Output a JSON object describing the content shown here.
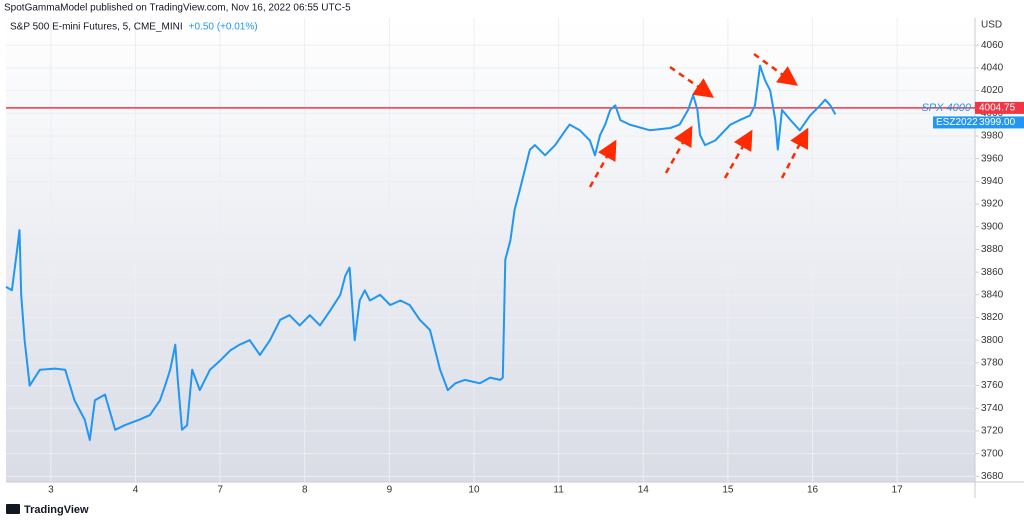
{
  "chart_data": {
    "type": "line",
    "header": "SpotGammaModel published on TradingView.com, Nov 16, 2022 06:55 UTC-5",
    "title": "S&P 500 E-mini Futures, 5, CME_MINI",
    "change": "+0.50 (+0.01%)",
    "currency": "USD",
    "footer": "TradingView",
    "x": [
      -0.53,
      -0.46,
      -0.4,
      -0.37,
      -0.35,
      -0.31,
      -0.25,
      -0.13,
      0.05,
      0.17,
      0.28,
      0.4,
      0.46,
      0.52,
      0.64,
      0.76,
      0.87,
      1.05,
      1.17,
      1.29,
      1.35,
      1.41,
      1.47,
      1.5,
      1.55,
      1.61,
      1.67,
      1.76,
      1.88,
      2.0,
      2.12,
      2.23,
      2.35,
      2.47,
      2.59,
      2.71,
      2.82,
      2.94,
      3.06,
      3.18,
      3.3,
      3.42,
      3.48,
      3.53,
      3.59,
      3.65,
      3.71,
      3.77,
      3.89,
      4.01,
      4.13,
      4.24,
      4.36,
      4.48,
      4.6,
      4.69,
      4.78,
      4.89,
      5.07,
      5.19,
      5.31,
      5.34,
      5.37,
      5.43,
      5.48,
      5.54,
      5.6,
      5.66,
      5.72,
      5.84,
      5.96,
      6.08,
      6.13,
      6.25,
      6.37,
      6.43,
      6.49,
      6.55,
      6.61,
      6.67,
      6.73,
      6.84,
      7.08,
      7.32,
      7.43,
      7.53,
      7.59,
      7.64,
      7.67,
      7.73,
      7.85,
      8.03,
      8.14,
      8.26,
      8.32,
      8.38,
      8.44,
      8.5,
      8.56,
      8.59,
      8.64,
      8.74,
      8.85,
      8.97,
      9.09,
      9.15,
      9.21,
      9.27
    ],
    "series": [
      {
        "name": "ESZ2022",
        "color": "#2196f3",
        "values": [
          3847,
          3844,
          3879,
          3897,
          3840,
          3800,
          3760,
          3774,
          3775,
          3774,
          3747,
          3730,
          3712,
          3747,
          3752,
          3721,
          3725,
          3730,
          3734,
          3747,
          3760,
          3774,
          3796,
          3765,
          3721,
          3725,
          3774,
          3756,
          3774,
          3782,
          3791,
          3796,
          3800,
          3787,
          3800,
          3818,
          3822,
          3813,
          3822,
          3813,
          3826,
          3840,
          3857,
          3864,
          3800,
          3835,
          3844,
          3835,
          3840,
          3831,
          3835,
          3831,
          3818,
          3809,
          3774,
          3756,
          3762,
          3765,
          3762,
          3767,
          3765,
          3767,
          3871,
          3888,
          3915,
          3932,
          3950,
          3968,
          3972,
          3963,
          3972,
          3985,
          3990,
          3985,
          3976,
          3963,
          3981,
          3990,
          4003,
          4007,
          3994,
          3990,
          3985,
          3987,
          3990,
          4003,
          4016,
          4003,
          3981,
          3972,
          3976,
          3990,
          3994,
          3998,
          4007,
          4042,
          4029,
          4020,
          3994,
          3968,
          4003,
          3994,
          3985,
          3998,
          4007,
          4012,
          4007,
          3999
        ],
        "value_labels": [
          null,
          null,
          null,
          null,
          null,
          null,
          null,
          null,
          null,
          null,
          null,
          null,
          null,
          null,
          null,
          null,
          null,
          null,
          null,
          null,
          null,
          null,
          null,
          null,
          null,
          null,
          null,
          null,
          null,
          null,
          null,
          null,
          null,
          null,
          null,
          null,
          null,
          null,
          null,
          null,
          null,
          null,
          null,
          null,
          null,
          null,
          null,
          null,
          null,
          null,
          null,
          null,
          null,
          null,
          null,
          null,
          null,
          null,
          null,
          null,
          null,
          null,
          null,
          null,
          null,
          null,
          null,
          null,
          null,
          null,
          null,
          null,
          null,
          null,
          null,
          null,
          null,
          null,
          null,
          null,
          null,
          null,
          null,
          null,
          null,
          null,
          null,
          null,
          null,
          null,
          null,
          null,
          null,
          null,
          null,
          null,
          null,
          null,
          null,
          null,
          null,
          null,
          null,
          null,
          null,
          null,
          null,
          "3999.00"
        ]
      }
    ],
    "hline": {
      "name": "SPX 4000",
      "value": 4004.75,
      "color": "#f23645"
    },
    "xlim": [
      -0.53,
      10.92
    ],
    "ylim": [
      3675,
      4084
    ],
    "xticks": [
      {
        "value": 0,
        "label": "3"
      },
      {
        "value": 1,
        "label": "4"
      },
      {
        "value": 2,
        "label": "7"
      },
      {
        "value": 3,
        "label": "8"
      },
      {
        "value": 4,
        "label": "9"
      },
      {
        "value": 5,
        "label": "10"
      },
      {
        "value": 6,
        "label": "11"
      },
      {
        "value": 7,
        "label": "14"
      },
      {
        "value": 8,
        "label": "15"
      },
      {
        "value": 9,
        "label": "16"
      },
      {
        "value": 10,
        "label": "17"
      }
    ],
    "yticks": [
      3680,
      3700,
      3720,
      3740,
      3760,
      3780,
      3800,
      3820,
      3840,
      3860,
      3880,
      3900,
      3920,
      3940,
      3960,
      3980,
      4000,
      4020,
      4040,
      4060
    ],
    "grid": true
  }
}
